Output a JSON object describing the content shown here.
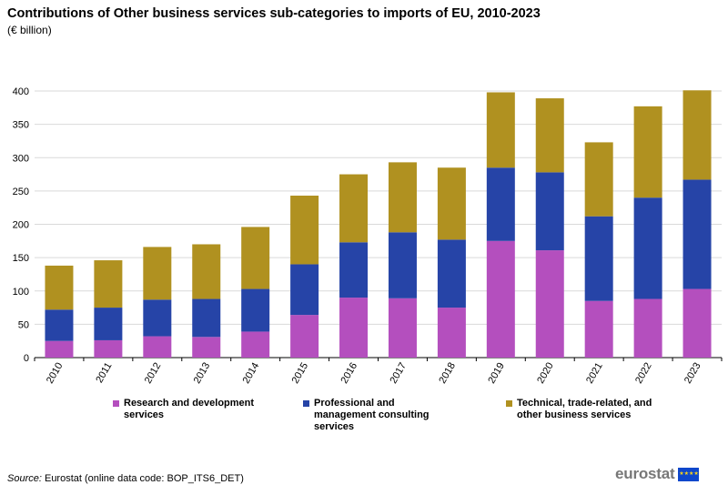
{
  "chart_data": {
    "type": "bar",
    "stacked": true,
    "title": "Contributions of Other business services sub-categories to imports of EU, 2010-2023",
    "subtitle": "(€ billion)",
    "xlabel": "",
    "ylabel": "",
    "ylim": [
      0,
      400
    ],
    "yticks": [
      0,
      50,
      100,
      150,
      200,
      250,
      300,
      350,
      400
    ],
    "grid": true,
    "legend_position": "bottom",
    "categories": [
      "2010",
      "2011",
      "2012",
      "2013",
      "2014",
      "2015",
      "2016",
      "2017",
      "2018",
      "2019",
      "2020",
      "2021",
      "2022",
      "2023"
    ],
    "series": [
      {
        "name": "Research and development services",
        "color": "#b44fbe",
        "values": [
          25,
          26,
          32,
          31,
          39,
          64,
          90,
          89,
          75,
          175,
          161,
          85,
          88,
          103
        ]
      },
      {
        "name": "Professional and management consulting services",
        "color": "#2644a7",
        "values": [
          47,
          49,
          55,
          57,
          64,
          76,
          83,
          99,
          102,
          110,
          117,
          127,
          152,
          164
        ]
      },
      {
        "name": "Technical, trade-related, and other business services",
        "color": "#b09120",
        "values": [
          66,
          71,
          79,
          82,
          93,
          103,
          102,
          105,
          108,
          113,
          111,
          111,
          137,
          134
        ]
      }
    ]
  },
  "legend": {
    "items": [
      {
        "label": "Research and development services",
        "color": "#b44fbe"
      },
      {
        "label": "Professional and management consulting services",
        "color": "#2644a7"
      },
      {
        "label": "Technical, trade-related, and other business services",
        "color": "#b09120"
      }
    ]
  },
  "footer": {
    "source_label": "Source:",
    "source_text": " Eurostat (online data code: BOP_ITS6_DET)",
    "logo_text": "eurostat",
    "logo_flag_glyphs": "★★★★"
  }
}
